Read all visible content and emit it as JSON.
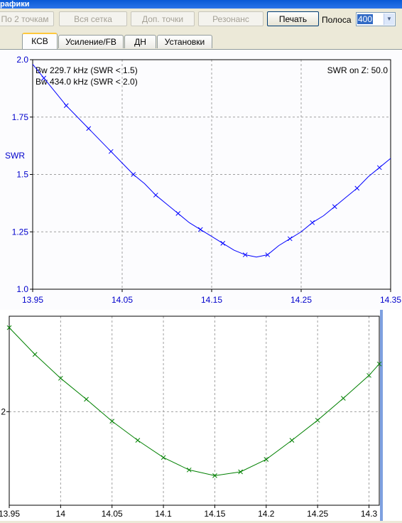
{
  "window": {
    "title": "рафики"
  },
  "toolbar": {
    "btn_two_points": "По 2 точкам",
    "btn_full_grid": "Вся сетка",
    "btn_extra_points": "Доп. точки",
    "btn_resonance": "Резонанс",
    "btn_print": "Печать",
    "band_label": "Полоса",
    "band_value": "400"
  },
  "tabs": [
    {
      "label": "КСВ"
    },
    {
      "label": "Усиление/FB"
    },
    {
      "label": "ДН"
    },
    {
      "label": "Установки"
    }
  ],
  "info": {
    "bw1": "Bw 229.7 kHz (SWR < 1.5)",
    "bw2": "Bw 434.0 kHz (SWR < 2.0)",
    "swr_z": "SWR on Z: 50.0"
  },
  "colors": {
    "upper_curve": "#0000ff",
    "lower_curve": "#008000",
    "axis_text_upper": "#0000cc"
  },
  "chart_data": [
    {
      "type": "line",
      "ylabel": "SWR",
      "xlabel": "",
      "xlim": [
        13.95,
        14.35
      ],
      "ylim": [
        1.0,
        2.0
      ],
      "x_ticks": [
        "13.95",
        "14.05",
        "14.15",
        "14.25",
        "14.35"
      ],
      "x_tick_values": [
        13.95,
        14.05,
        14.15,
        14.25,
        14.35
      ],
      "y_ticks": [
        "2.0",
        "1.75",
        "1.5",
        "1.25",
        "1.0"
      ],
      "y_tick_values": [
        2.0,
        1.75,
        1.5,
        1.25,
        1.0
      ],
      "grid": true,
      "series": [
        {
          "x": [
            13.95,
            13.9625,
            13.975,
            13.9875,
            14.0,
            14.0125,
            14.025,
            14.0375,
            14.05,
            14.0625,
            14.075,
            14.0875,
            14.1,
            14.1125,
            14.125,
            14.1375,
            14.15,
            14.1625,
            14.175,
            14.1875,
            14.2,
            14.2125,
            14.225,
            14.2375,
            14.25,
            14.2625,
            14.275,
            14.2875,
            14.3,
            14.3125,
            14.325,
            14.3375,
            14.35
          ],
          "y": [
            1.98,
            1.92,
            1.86,
            1.8,
            1.75,
            1.7,
            1.65,
            1.6,
            1.55,
            1.5,
            1.46,
            1.41,
            1.37,
            1.33,
            1.29,
            1.26,
            1.23,
            1.2,
            1.17,
            1.15,
            1.14,
            1.15,
            1.19,
            1.22,
            1.25,
            1.29,
            1.32,
            1.36,
            1.4,
            1.44,
            1.49,
            1.53,
            1.57
          ]
        }
      ]
    },
    {
      "type": "line",
      "xlim": [
        13.95,
        14.31
      ],
      "x_ticks": [
        "13.95",
        "14",
        "14.05",
        "14.1",
        "14.15",
        "14.2",
        "14.25",
        "14.3"
      ],
      "x_tick_values": [
        13.95,
        14.0,
        14.05,
        14.1,
        14.15,
        14.2,
        14.25,
        14.3
      ],
      "y_ticks": [
        "2"
      ],
      "y_tick_values": [
        2.0
      ],
      "ylim": [
        1.02,
        3.0
      ],
      "grid": true,
      "series": [
        {
          "x": [
            13.95,
            13.975,
            14.0,
            14.025,
            14.05,
            14.075,
            14.1,
            14.125,
            14.15,
            14.175,
            14.2,
            14.225,
            14.25,
            14.275,
            14.3,
            14.31
          ],
          "y": [
            2.88,
            2.6,
            2.35,
            2.13,
            1.9,
            1.7,
            1.52,
            1.39,
            1.33,
            1.37,
            1.5,
            1.7,
            1.91,
            2.14,
            2.38,
            2.5
          ]
        }
      ]
    }
  ]
}
